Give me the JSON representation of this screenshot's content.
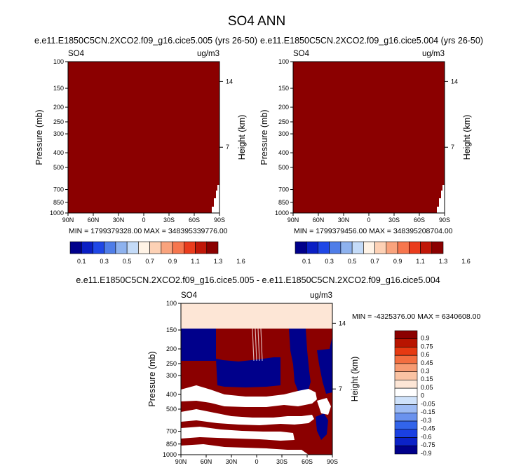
{
  "title": "SO4 ANN",
  "colors": {
    "dark_red": "#8b0000",
    "dark_blue": "#00008b",
    "white": "#ffffff",
    "pale": "#fde6d6",
    "sequential_scale": [
      "#00008b",
      "#0a1fc4",
      "#1f47e6",
      "#4f7de8",
      "#8eb2ee",
      "#c4dbf8",
      "#fff3e6",
      "#fdd1b5",
      "#f9a37d",
      "#f6764e",
      "#ea3c1d",
      "#c01708",
      "#8b0000"
    ],
    "diverging_scale": [
      "#00008b",
      "#0b22c8",
      "#1a40e2",
      "#3264ea",
      "#6a92ee",
      "#9ebcf4",
      "#cfe2fa",
      "#ffffff",
      "#fde6d6",
      "#fac3a3",
      "#f79b72",
      "#f36e40",
      "#e63a12",
      "#b81400",
      "#8b0000"
    ]
  },
  "panel1": {
    "case": "e.e11.E1850C5CN.2XCO2.f09_g16.cice5.005 (yrs 26-50)",
    "var": "SO4",
    "units": "ug/m3",
    "y_label": "Pressure (mb)",
    "y2_label": "Height (km)",
    "stats": "MIN = 1799379328.00  MAX = 348395339776.00"
  },
  "panel2": {
    "case": "e.e11.E1850C5CN.2XCO2.f09_g16.cice5.004 (yrs 26-50)",
    "var": "SO4",
    "units": "ug/m3",
    "y_label": "Pressure (mb)",
    "y2_label": "Height (km)",
    "stats": "MIN = 1799379456.00  MAX = 348395208704.00"
  },
  "panel3": {
    "case": "e.e11.E1850C5CN.2XCO2.f09_g16.cice5.005 - e.e11.E1850C5CN.2XCO2.f09_g16.cice5.004",
    "var": "SO4",
    "units": "ug/m3",
    "y_label": "Pressure (mb)",
    "y2_label": "Height (km)",
    "stats": "MIN = -4325376.00  MAX = 6340608.00"
  },
  "chart_data": [
    {
      "type": "heatmap",
      "title": "e.e11.E1850C5CN.2XCO2.f09_g16.cice5.005 (yrs 26-50)",
      "xlabel": "",
      "ylabel": "Pressure (mb)",
      "y2label": "Height (km)",
      "x_ticks": [
        "90N",
        "60N",
        "30N",
        "0",
        "30S",
        "60S",
        "90S"
      ],
      "y_ticks": [
        "100",
        "150",
        "200",
        "250",
        "300",
        "400",
        "500",
        "700",
        "850",
        "1000"
      ],
      "y2_ticks": [
        "14",
        "7"
      ],
      "colorbar_labels": [
        "0.1",
        "0.3",
        "0.5",
        "0.7",
        "0.9",
        "1.1",
        "1.3",
        "1.6"
      ],
      "field_summary": "uniform dark red (above 1.6) everywhere except white near the surface poleward of ~75S",
      "min": 1799379328.0,
      "max": 348395339776.0
    },
    {
      "type": "heatmap",
      "title": "e.e11.E1850C5CN.2XCO2.f09_g16.cice5.004 (yrs 26-50)",
      "xlabel": "",
      "ylabel": "Pressure (mb)",
      "y2label": "Height (km)",
      "x_ticks": [
        "90N",
        "60N",
        "30N",
        "0",
        "30S",
        "60S",
        "90S"
      ],
      "y_ticks": [
        "100",
        "150",
        "200",
        "250",
        "300",
        "400",
        "500",
        "700",
        "850",
        "1000"
      ],
      "y2_ticks": [
        "14",
        "7"
      ],
      "colorbar_labels": [
        "0.1",
        "0.3",
        "0.5",
        "0.7",
        "0.9",
        "1.1",
        "1.3",
        "1.6"
      ],
      "field_summary": "uniform dark red (above 1.6) everywhere except white near the surface poleward of ~75S",
      "min": 1799379456.0,
      "max": 348395208704.0
    },
    {
      "type": "heatmap",
      "title": "e.e11.E1850C5CN.2XCO2.f09_g16.cice5.005 - e.e11.E1850C5CN.2XCO2.f09_g16.cice5.004",
      "xlabel": "",
      "ylabel": "Pressure (mb)",
      "y2label": "Height (km)",
      "x_ticks": [
        "90N",
        "60N",
        "30N",
        "0",
        "30S",
        "60S",
        "90S"
      ],
      "y_ticks": [
        "100",
        "150",
        "200",
        "250",
        "300",
        "400",
        "500",
        "700",
        "850",
        "1000"
      ],
      "y2_ticks": [
        "14",
        "7"
      ],
      "colorbar_labels": [
        "0.9",
        "0.75",
        "0.6",
        "0.45",
        "0.3",
        "0.15",
        "0.05",
        "0",
        "-0.05",
        "-0.15",
        "-0.3",
        "-0.45",
        "-0.6",
        "-0.75",
        "-0.9"
      ],
      "field_summary": "pale 0-0.05 band above ~150 mb; alternating dark red / dark blue / white regions below",
      "min": -4325376.0,
      "max": 6340608.0
    }
  ]
}
